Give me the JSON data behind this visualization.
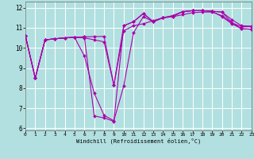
{
  "xlabel": "Windchill (Refroidissement éolien,°C)",
  "background_color": "#b2e0e0",
  "grid_color": "#ffffff",
  "line_color": "#aa00aa",
  "x_ticks": [
    0,
    1,
    2,
    3,
    4,
    5,
    6,
    7,
    8,
    9,
    10,
    11,
    12,
    13,
    14,
    15,
    16,
    17,
    18,
    19,
    20,
    21,
    22,
    23
  ],
  "y_ticks": [
    6,
    7,
    8,
    9,
    10,
    11,
    12
  ],
  "xlim": [
    0,
    23
  ],
  "ylim": [
    5.9,
    12.3
  ],
  "lines": [
    {
      "x": [
        0,
        1,
        2,
        3,
        4,
        5,
        6,
        7,
        8,
        9,
        10,
        11,
        12,
        13,
        14,
        15,
        16,
        17,
        18,
        19,
        20,
        21,
        22,
        23
      ],
      "y": [
        10.6,
        8.5,
        10.4,
        10.45,
        10.5,
        10.52,
        9.6,
        7.75,
        6.65,
        6.38,
        8.1,
        10.75,
        11.55,
        11.3,
        11.5,
        11.55,
        11.8,
        11.85,
        11.85,
        11.82,
        11.55,
        11.2,
        10.95,
        10.93
      ]
    },
    {
      "x": [
        0,
        1,
        2,
        3,
        4,
        5,
        6,
        7,
        8,
        9,
        10,
        11,
        12,
        13,
        14,
        15,
        16,
        17,
        18,
        19,
        20,
        21,
        22,
        23
      ],
      "y": [
        10.6,
        8.5,
        10.4,
        10.45,
        10.5,
        10.52,
        10.5,
        10.4,
        10.3,
        8.15,
        10.85,
        11.1,
        11.2,
        11.35,
        11.5,
        11.55,
        11.65,
        11.75,
        11.78,
        11.78,
        11.6,
        11.25,
        11.05,
        11.05
      ]
    },
    {
      "x": [
        0,
        1,
        2,
        3,
        4,
        5,
        6,
        7,
        8,
        9,
        10,
        11,
        12,
        13,
        14,
        15,
        16,
        17,
        18,
        19,
        20,
        21,
        22,
        23
      ],
      "y": [
        10.6,
        8.5,
        10.4,
        10.45,
        10.5,
        10.52,
        10.55,
        10.56,
        10.57,
        8.15,
        11.1,
        11.3,
        11.7,
        11.3,
        11.5,
        11.6,
        11.8,
        11.85,
        11.85,
        11.82,
        11.78,
        11.4,
        11.1,
        11.08
      ]
    },
    {
      "x": [
        0,
        1,
        2,
        3,
        4,
        5,
        6,
        7,
        8,
        9,
        10,
        11,
        12,
        13,
        14,
        15,
        16,
        17,
        18,
        19,
        20,
        21,
        22,
        23
      ],
      "y": [
        10.6,
        8.5,
        10.4,
        10.45,
        10.5,
        10.52,
        10.55,
        6.62,
        6.52,
        6.35,
        11.1,
        11.3,
        11.72,
        11.3,
        11.5,
        11.6,
        11.8,
        11.85,
        11.85,
        11.82,
        11.78,
        11.25,
        10.95,
        10.93
      ]
    }
  ],
  "figwidth": 3.2,
  "figheight": 2.0,
  "dpi": 100
}
